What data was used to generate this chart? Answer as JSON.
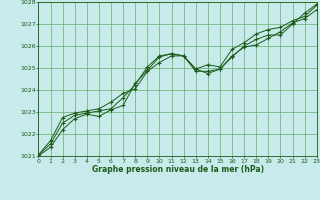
{
  "title": "Graphe pression niveau de la mer (hPa)",
  "bg_color": "#c8eaea",
  "plot_bg_color": "#c8eaea",
  "grid_color": "#5aaa5a",
  "line_color": "#1a5c1a",
  "marker_color": "#1a5c1a",
  "xlim": [
    0,
    23
  ],
  "ylim": [
    1021,
    1028
  ],
  "xticks": [
    0,
    1,
    2,
    3,
    4,
    5,
    6,
    7,
    8,
    9,
    10,
    11,
    12,
    13,
    14,
    15,
    16,
    17,
    18,
    19,
    20,
    21,
    22,
    23
  ],
  "yticks": [
    1021,
    1022,
    1023,
    1024,
    1025,
    1026,
    1027,
    1028
  ],
  "series1": {
    "x": [
      0,
      1,
      2,
      3,
      4,
      5,
      6,
      7,
      8,
      9,
      10,
      11,
      12,
      13,
      14,
      15,
      16,
      17,
      18,
      19,
      20,
      21,
      22,
      23
    ],
    "y": [
      1021.0,
      1021.4,
      1022.2,
      1022.7,
      1022.9,
      1022.8,
      1023.1,
      1023.3,
      1024.3,
      1024.9,
      1025.5,
      1025.65,
      1025.55,
      1024.95,
      1024.75,
      1024.95,
      1025.5,
      1026.0,
      1026.3,
      1026.5,
      1026.5,
      1027.0,
      1027.5,
      1027.9
    ]
  },
  "series2": {
    "x": [
      0,
      1,
      2,
      3,
      4,
      5,
      6,
      7,
      8,
      9,
      10,
      11,
      12,
      13,
      14,
      15,
      16,
      17,
      18,
      19,
      20,
      21,
      22,
      23
    ],
    "y": [
      1021.05,
      1021.55,
      1022.5,
      1022.85,
      1022.95,
      1023.05,
      1023.15,
      1023.65,
      1024.25,
      1025.05,
      1025.55,
      1025.65,
      1025.55,
      1024.95,
      1025.15,
      1025.05,
      1025.85,
      1026.15,
      1026.55,
      1026.75,
      1026.85,
      1027.15,
      1027.35,
      1027.85
    ]
  },
  "series3": {
    "x": [
      0,
      1,
      2,
      3,
      4,
      5,
      6,
      7,
      8,
      9,
      10,
      11,
      12,
      13,
      14,
      15,
      16,
      17,
      18,
      19,
      20,
      21,
      22,
      23
    ],
    "y": [
      1021.05,
      1021.7,
      1022.75,
      1022.95,
      1023.05,
      1023.15,
      1023.45,
      1023.85,
      1024.05,
      1024.85,
      1025.25,
      1025.55,
      1025.55,
      1024.85,
      1024.85,
      1024.95,
      1025.55,
      1025.95,
      1026.05,
      1026.35,
      1026.65,
      1027.05,
      1027.25,
      1027.65
    ]
  }
}
